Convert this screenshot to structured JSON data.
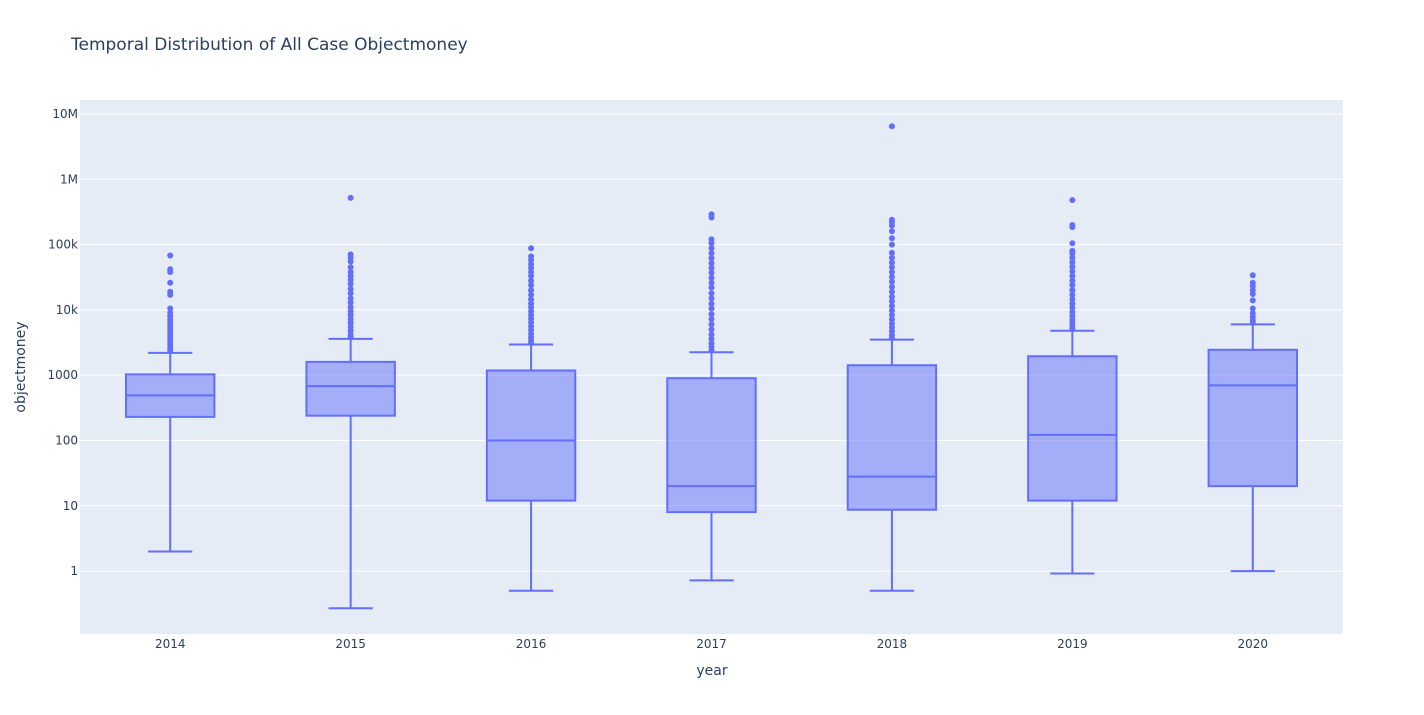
{
  "chart_data": {
    "type": "box",
    "title": "Temporal Distribution of All Case Objectmoney",
    "xlabel": "year",
    "ylabel": "objectmoney",
    "yscale": "log",
    "ylim": [
      0.15,
      15000000
    ],
    "grid": true,
    "legend": "none",
    "colors": {
      "plot_bg": "#e5ecf6",
      "grid": "#ffffff",
      "box_line": "#636efa",
      "box_fill": "rgba(99,110,250,0.5)",
      "text": "#2a3f5f"
    },
    "y_ticks": [
      {
        "value": 1,
        "label": "1"
      },
      {
        "value": 10,
        "label": "10"
      },
      {
        "value": 100,
        "label": "100"
      },
      {
        "value": 1000,
        "label": "1000"
      },
      {
        "value": 10000,
        "label": "10k"
      },
      {
        "value": 100000,
        "label": "100k"
      },
      {
        "value": 1000000,
        "label": "1M"
      },
      {
        "value": 10000000,
        "label": "10M"
      }
    ],
    "categories": [
      "2014",
      "2015",
      "2016",
      "2017",
      "2018",
      "2019",
      "2020"
    ],
    "boxes": [
      {
        "year": "2014",
        "min": 2,
        "q1": 230,
        "median": 490,
        "q3": 1030,
        "upper_fence": 2200,
        "outliers": [
          2400,
          2600,
          2900,
          3200,
          3600,
          4000,
          4500,
          5000,
          5600,
          6300,
          7000,
          8000,
          9000,
          10500,
          17000,
          19000,
          26000,
          38000,
          42000,
          68000
        ]
      },
      {
        "year": "2015",
        "min": 0.27,
        "q1": 240,
        "median": 680,
        "q3": 1600,
        "upper_fence": 3600,
        "outliers": [
          3800,
          4200,
          4800,
          5500,
          6300,
          7200,
          8300,
          9500,
          11000,
          13000,
          15000,
          18000,
          21000,
          25000,
          29000,
          33000,
          38000,
          45000,
          55000,
          63000,
          71000,
          520000
        ]
      },
      {
        "year": "2016",
        "min": 0.5,
        "q1": 12,
        "median": 100,
        "q3": 1180,
        "upper_fence": 2950,
        "outliers": [
          3100,
          3400,
          3800,
          4300,
          4900,
          5600,
          6400,
          7300,
          8300,
          9500,
          11000,
          12500,
          14500,
          17000,
          20000,
          24000,
          28000,
          33000,
          38000,
          44000,
          50000,
          58000,
          66000,
          88000
        ]
      },
      {
        "year": "2017",
        "min": 0.72,
        "q1": 8,
        "median": 20,
        "q3": 900,
        "upper_fence": 2250,
        "outliers": [
          2400,
          2700,
          3100,
          3600,
          4200,
          5000,
          6000,
          7200,
          8600,
          10500,
          12500,
          15000,
          18000,
          22000,
          26000,
          31000,
          37000,
          44000,
          52000,
          62000,
          74000,
          88000,
          105000,
          120000,
          260000,
          290000
        ]
      },
      {
        "year": "2018",
        "min": 0.5,
        "q1": 8.7,
        "median": 28,
        "q3": 1420,
        "upper_fence": 3500,
        "outliers": [
          3700,
          4100,
          4700,
          5400,
          6200,
          7200,
          8400,
          9800,
          11500,
          13500,
          16000,
          19000,
          22500,
          27000,
          32000,
          38000,
          45000,
          53000,
          63000,
          75000,
          100000,
          125000,
          160000,
          195000,
          220000,
          240000,
          6500000
        ]
      },
      {
        "year": "2019",
        "min": 0.92,
        "q1": 12,
        "median": 122,
        "q3": 1950,
        "upper_fence": 4800,
        "outliers": [
          5100,
          5600,
          6300,
          7100,
          8100,
          9300,
          10800,
          12500,
          14500,
          17000,
          20000,
          24000,
          28000,
          33000,
          39000,
          46000,
          54000,
          63000,
          73000,
          80000,
          105000,
          185000,
          200000,
          480000
        ]
      },
      {
        "year": "2020",
        "min": 1,
        "q1": 20,
        "median": 700,
        "q3": 2450,
        "upper_fence": 6000,
        "outliers": [
          6300,
          6900,
          7800,
          8900,
          10500,
          14000,
          17500,
          20000,
          23000,
          26000,
          34000
        ]
      }
    ]
  }
}
